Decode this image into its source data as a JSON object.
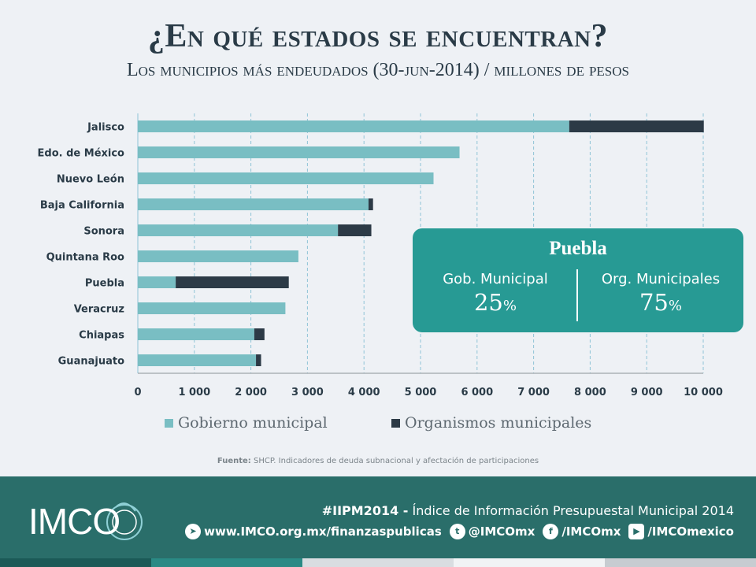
{
  "header": {
    "title": "¿En qué estados se encuentran?",
    "subtitle": "Los municipios más endeudados (30-jun-2014) / millones de pesos"
  },
  "colors": {
    "gobierno": "#79bec3",
    "organismos": "#2c3a46",
    "grid": "#8fc4d6",
    "callout": "#279a94",
    "footer": "#2a6e6a"
  },
  "chart_data": {
    "type": "bar",
    "orientation": "horizontal",
    "stacked": true,
    "categories": [
      "Jalisco",
      "Edo. de México",
      "Nuevo León",
      "Baja California",
      "Sonora",
      "Quintana Roo",
      "Puebla",
      "Veracruz",
      "Chiapas",
      "Guanajuato"
    ],
    "series": [
      {
        "name": "Gobierno municipal",
        "values": [
          7630,
          5690,
          5230,
          4080,
          3540,
          2840,
          670,
          2610,
          2060,
          2090
        ]
      },
      {
        "name": "Organismos municipales",
        "values": [
          2380,
          0,
          0,
          80,
          590,
          0,
          2000,
          0,
          180,
          90
        ]
      }
    ],
    "xlim": [
      0,
      10000
    ],
    "xticks": [
      0,
      1000,
      2000,
      3000,
      4000,
      5000,
      6000,
      7000,
      8000,
      9000,
      10000
    ],
    "xtick_labels": [
      "0",
      "1 000",
      "2 000",
      "3 000",
      "4 000",
      "5 000",
      "6 000",
      "7 000",
      "8 000",
      "9 000",
      "10 000"
    ],
    "grid": "vertical dashed",
    "legend_position": "bottom"
  },
  "callout": {
    "title": "Puebla",
    "left_label": "Gob. Municipal",
    "left_value": "25",
    "right_label": "Org. Municipales",
    "right_value": "75",
    "percent_symbol": "%"
  },
  "source": {
    "label": "Fuente:",
    "text": " SHCP. Indicadores de deuda subnacional y afectación de participaciones"
  },
  "footer": {
    "logo": "IMCO",
    "hashtag": "#IIPM2014 -",
    "tagline": " Índice de Información Presupuestal Municipal 2014",
    "links": [
      {
        "icon": "send-icon",
        "text": "www.IMCO.org.mx/finanzaspublicas"
      },
      {
        "icon": "twitter-icon",
        "text": "@IMCOmx"
      },
      {
        "icon": "facebook-icon",
        "text": "/IMCOmx"
      },
      {
        "icon": "youtube-icon",
        "text": "/IMCOmexico"
      }
    ],
    "stripe_colors": [
      "#1b5a57",
      "#2a8a85",
      "#d9dde1",
      "#f1f3f5",
      "#c7ccd1"
    ]
  }
}
